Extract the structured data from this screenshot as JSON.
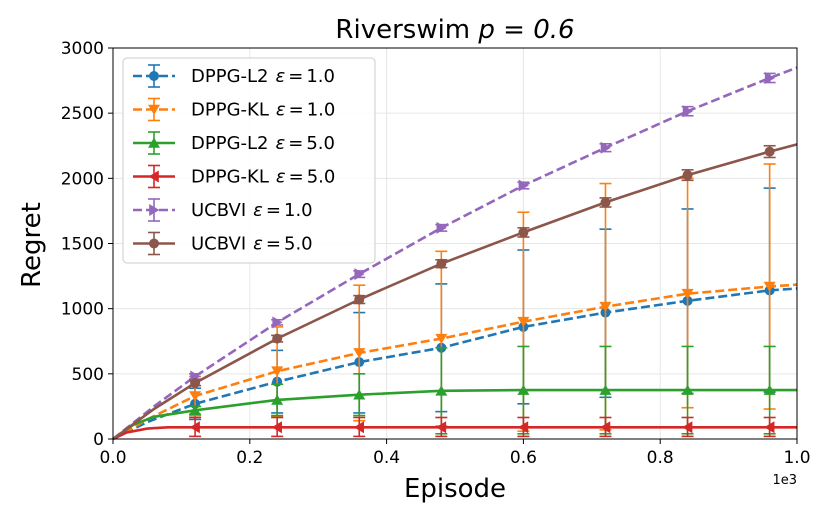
{
  "chart_data": {
    "type": "line",
    "title": "Riverswim $p = 0.6$",
    "title_text": "Riverswim ",
    "title_math": "p = 0.6",
    "xlabel": "Episode",
    "ylabel": "Regret",
    "x_multiplier_label": "1e3",
    "xlim": [
      0,
      1.0
    ],
    "ylim": [
      0,
      3000
    ],
    "x_ticks": [
      "0.0",
      "0.2",
      "0.4",
      "0.6",
      "0.8",
      "1.0"
    ],
    "y_ticks": [
      "0",
      "500",
      "1000",
      "1500",
      "2000",
      "2500",
      "3000"
    ],
    "grid": true,
    "legend_position": "top-left",
    "series": [
      {
        "name": "DPPG-L2",
        "eps": "1.0",
        "color": "#1f77b4",
        "style": "dashed",
        "marker": "circle",
        "x": [
          0.0,
          0.05,
          0.12,
          0.24,
          0.36,
          0.48,
          0.6,
          0.72,
          0.84,
          0.96,
          1.0
        ],
        "y": [
          0,
          130,
          270,
          440,
          590,
          700,
          860,
          970,
          1060,
          1140,
          1155
        ],
        "error_x": [
          0.12,
          0.24,
          0.36,
          0.48,
          0.6,
          0.72,
          0.84,
          0.96
        ],
        "error_y": [
          270,
          440,
          590,
          700,
          860,
          970,
          1060,
          1140
        ],
        "error_lo": [
          150,
          200,
          200,
          210,
          270,
          320,
          350,
          360
        ],
        "error_hi": [
          390,
          680,
          970,
          1190,
          1450,
          1610,
          1765,
          1925
        ]
      },
      {
        "name": "DPPG-KL",
        "eps": "1.0",
        "color": "#ff7f0e",
        "style": "dashed",
        "marker": "triangle-down",
        "x": [
          0.0,
          0.05,
          0.12,
          0.24,
          0.36,
          0.48,
          0.6,
          0.72,
          0.84,
          0.96,
          1.0
        ],
        "y": [
          0,
          150,
          330,
          520,
          660,
          770,
          900,
          1015,
          1115,
          1170,
          1185
        ],
        "error_x": [
          0.12,
          0.24,
          0.36,
          0.48,
          0.6,
          0.72,
          0.84,
          0.96
        ],
        "error_y": [
          330,
          520,
          660,
          770,
          900,
          1015,
          1115,
          1170
        ],
        "error_lo": [
          180,
          170,
          140,
          100,
          60,
          70,
          240,
          230
        ],
        "error_hi": [
          480,
          860,
          1180,
          1440,
          1740,
          1960,
          2000,
          2110
        ]
      },
      {
        "name": "DPPG-L2",
        "eps": "5.0",
        "color": "#2ca02c",
        "style": "solid",
        "marker": "triangle-up",
        "x": [
          0.0,
          0.03,
          0.06,
          0.12,
          0.24,
          0.36,
          0.48,
          0.6,
          0.72,
          0.84,
          0.96,
          1.0
        ],
        "y": [
          0,
          110,
          170,
          220,
          300,
          340,
          370,
          375,
          375,
          375,
          375,
          375
        ],
        "error_x": [
          0.12,
          0.24,
          0.36,
          0.48,
          0.6,
          0.72,
          0.84,
          0.96
        ],
        "error_y": [
          220,
          300,
          340,
          370,
          375,
          375,
          375,
          375
        ],
        "error_lo": [
          190,
          180,
          180,
          40,
          40,
          40,
          40,
          40
        ],
        "error_hi": [
          250,
          420,
          500,
          700,
          710,
          710,
          710,
          710
        ]
      },
      {
        "name": "DPPG-KL",
        "eps": "5.0",
        "color": "#d62728",
        "style": "solid",
        "marker": "triangle-left",
        "x": [
          0.0,
          0.02,
          0.05,
          0.08,
          0.12,
          0.24,
          0.36,
          0.48,
          0.6,
          0.72,
          0.84,
          0.96,
          1.0
        ],
        "y": [
          0,
          50,
          80,
          90,
          90,
          90,
          90,
          90,
          90,
          90,
          90,
          90,
          90
        ],
        "error_x": [
          0.12,
          0.24,
          0.36,
          0.48,
          0.6,
          0.72,
          0.84,
          0.96
        ],
        "error_y": [
          90,
          90,
          90,
          90,
          90,
          90,
          90,
          90
        ],
        "error_lo": [
          20,
          20,
          20,
          20,
          20,
          20,
          20,
          20
        ],
        "error_hi": [
          165,
          165,
          165,
          165,
          165,
          165,
          165,
          165
        ]
      },
      {
        "name": "UCBVI",
        "eps": "1.0",
        "color": "#9467bd",
        "style": "dashed",
        "marker": "triangle-right",
        "x": [
          0.0,
          0.06,
          0.12,
          0.24,
          0.36,
          0.48,
          0.6,
          0.72,
          0.84,
          0.96,
          1.0
        ],
        "y": [
          0,
          250,
          480,
          895,
          1265,
          1620,
          1945,
          2235,
          2515,
          2770,
          2850
        ],
        "error_x": [
          0.12,
          0.24,
          0.36,
          0.48,
          0.6,
          0.72,
          0.84,
          0.96
        ],
        "error_y": [
          480,
          895,
          1265,
          1620,
          1945,
          2235,
          2515,
          2770
        ],
        "error_lo": [
          460,
          875,
          1240,
          1595,
          1920,
          2205,
          2480,
          2735
        ],
        "error_hi": [
          500,
          915,
          1290,
          1645,
          1970,
          2265,
          2550,
          2805
        ]
      },
      {
        "name": "UCBVI",
        "eps": "5.0",
        "color": "#8c564b",
        "style": "solid",
        "marker": "circle",
        "x": [
          0.0,
          0.06,
          0.12,
          0.24,
          0.36,
          0.48,
          0.6,
          0.72,
          0.84,
          0.96,
          1.0
        ],
        "y": [
          0,
          230,
          430,
          770,
          1070,
          1345,
          1585,
          1815,
          2025,
          2205,
          2260
        ],
        "error_x": [
          0.12,
          0.24,
          0.36,
          0.48,
          0.6,
          0.72,
          0.84,
          0.96
        ],
        "error_y": [
          430,
          770,
          1070,
          1345,
          1585,
          1815,
          2025,
          2205
        ],
        "error_lo": [
          410,
          745,
          1040,
          1315,
          1550,
          1780,
          1985,
          2160
        ],
        "error_hi": [
          450,
          795,
          1100,
          1375,
          1620,
          1850,
          2065,
          2250
        ]
      }
    ]
  }
}
